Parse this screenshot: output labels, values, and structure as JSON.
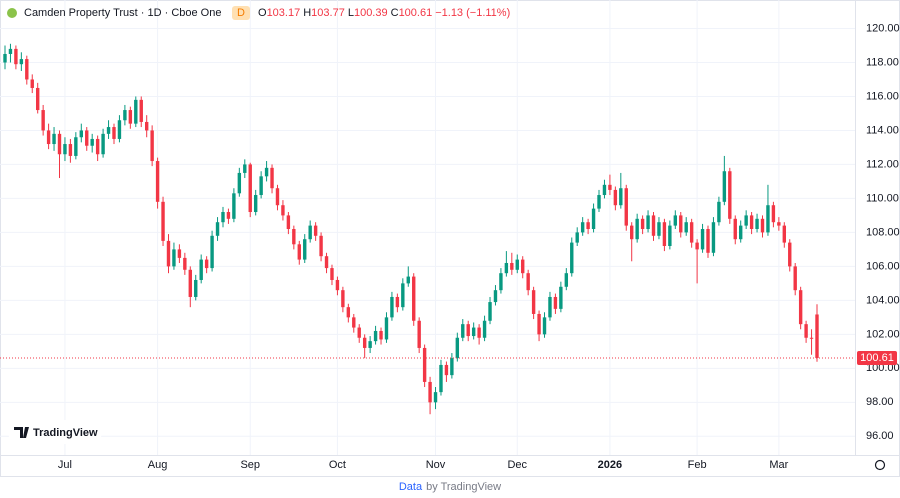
{
  "chart_data": {
    "type": "candlestick",
    "title": "Camden Property Trust · 1D · Cboe One",
    "badge": "D",
    "ohlc_labels": [
      "O",
      "H",
      "L",
      "C"
    ],
    "change_label": "−1.13 (−1.11%)",
    "logo": "TradingView",
    "footer": [
      "Data",
      "by TradingView"
    ],
    "up_color": "#089981",
    "down_color": "#f23645",
    "ylim": [
      94.9,
      120.5
    ],
    "yticks": [
      {
        "value": 96,
        "label": "96.00"
      },
      {
        "value": 98,
        "label": "98.00"
      },
      {
        "value": 100,
        "label": "100.00"
      },
      {
        "value": 102,
        "label": "102.00"
      },
      {
        "value": 104,
        "label": "104.00"
      },
      {
        "value": 106,
        "label": "106.00"
      },
      {
        "value": 108,
        "label": "108.00"
      },
      {
        "value": 110,
        "label": "110.00"
      },
      {
        "value": 112,
        "label": "112.00"
      },
      {
        "value": 114,
        "label": "114.00"
      },
      {
        "value": 116,
        "label": "116.00"
      },
      {
        "value": 118,
        "label": "118.00"
      },
      {
        "value": 120,
        "label": "120.00"
      }
    ],
    "xticks": [
      {
        "value": 11,
        "label": "Jul"
      },
      {
        "value": 28,
        "label": "Aug"
      },
      {
        "value": 45,
        "label": "Sep"
      },
      {
        "value": 61,
        "label": "Oct"
      },
      {
        "value": 79,
        "label": "Nov"
      },
      {
        "value": 94,
        "label": "Dec"
      },
      {
        "value": 111,
        "label": "2026"
      },
      {
        "value": 127,
        "label": "Feb"
      },
      {
        "value": 142,
        "label": "Mar"
      }
    ],
    "grid": true,
    "candles": [
      [
        118.0,
        119.0,
        117.6,
        118.5
      ],
      [
        118.5,
        119.1,
        118.0,
        118.8
      ],
      [
        118.8,
        119.0,
        117.6,
        117.9
      ],
      [
        117.9,
        118.6,
        117.5,
        118.2
      ],
      [
        118.2,
        118.4,
        116.7,
        117.0
      ],
      [
        117.0,
        117.3,
        116.2,
        116.5
      ],
      [
        116.5,
        116.8,
        115.0,
        115.2
      ],
      [
        115.2,
        115.5,
        113.7,
        114.0
      ],
      [
        114.0,
        114.4,
        112.9,
        113.2
      ],
      [
        113.2,
        114.2,
        112.8,
        113.8
      ],
      [
        113.8,
        114.0,
        111.2,
        112.6
      ],
      [
        112.6,
        113.6,
        112.2,
        113.2
      ],
      [
        113.2,
        113.5,
        112.1,
        112.5
      ],
      [
        112.5,
        113.9,
        112.3,
        113.6
      ],
      [
        113.6,
        114.4,
        113.3,
        114.0
      ],
      [
        114.0,
        114.2,
        112.8,
        113.1
      ],
      [
        113.1,
        113.8,
        112.7,
        113.5
      ],
      [
        113.5,
        113.7,
        112.2,
        112.6
      ],
      [
        112.6,
        114.1,
        112.4,
        113.8
      ],
      [
        113.8,
        114.6,
        113.5,
        114.2
      ],
      [
        114.2,
        114.4,
        113.2,
        113.5
      ],
      [
        113.5,
        114.9,
        113.3,
        114.6
      ],
      [
        114.6,
        115.5,
        114.3,
        115.2
      ],
      [
        115.2,
        115.4,
        114.1,
        114.4
      ],
      [
        114.4,
        116.0,
        114.2,
        115.8
      ],
      [
        115.8,
        116.0,
        114.2,
        114.5
      ],
      [
        114.5,
        114.9,
        113.6,
        114.0
      ],
      [
        114.0,
        114.3,
        111.9,
        112.2
      ],
      [
        112.2,
        112.4,
        109.4,
        109.8
      ],
      [
        109.8,
        110.1,
        107.2,
        107.5
      ],
      [
        107.5,
        107.9,
        105.6,
        106.0
      ],
      [
        106.0,
        107.4,
        105.8,
        107.0
      ],
      [
        107.0,
        107.3,
        106.2,
        106.5
      ],
      [
        106.5,
        106.8,
        105.5,
        105.8
      ],
      [
        105.8,
        106.0,
        103.6,
        104.2
      ],
      [
        104.2,
        105.5,
        104.0,
        105.2
      ],
      [
        105.2,
        106.7,
        105.0,
        106.4
      ],
      [
        106.4,
        106.6,
        105.6,
        105.9
      ],
      [
        105.9,
        108.1,
        105.7,
        107.8
      ],
      [
        107.8,
        108.9,
        107.5,
        108.6
      ],
      [
        108.6,
        109.5,
        108.3,
        109.2
      ],
      [
        109.2,
        109.4,
        108.5,
        108.8
      ],
      [
        108.8,
        110.6,
        108.6,
        110.3
      ],
      [
        110.3,
        111.8,
        110.1,
        111.5
      ],
      [
        111.5,
        112.3,
        111.2,
        112.0
      ],
      [
        112.0,
        112.1,
        108.9,
        109.2
      ],
      [
        109.2,
        110.5,
        109.0,
        110.2
      ],
      [
        110.2,
        111.6,
        110.0,
        111.3
      ],
      [
        111.3,
        112.2,
        111.0,
        111.8
      ],
      [
        111.8,
        112.0,
        110.3,
        110.6
      ],
      [
        110.6,
        110.8,
        109.3,
        109.6
      ],
      [
        109.6,
        109.9,
        108.7,
        109.0
      ],
      [
        109.0,
        109.2,
        107.9,
        108.2
      ],
      [
        108.2,
        108.4,
        107.0,
        107.3
      ],
      [
        107.3,
        107.5,
        106.1,
        106.4
      ],
      [
        106.4,
        107.9,
        106.2,
        107.6
      ],
      [
        107.6,
        108.7,
        107.4,
        108.4
      ],
      [
        108.4,
        108.6,
        107.5,
        107.8
      ],
      [
        107.8,
        108.0,
        106.3,
        106.6
      ],
      [
        106.6,
        106.8,
        105.6,
        105.9
      ],
      [
        105.9,
        106.1,
        104.9,
        105.2
      ],
      [
        105.2,
        105.4,
        104.3,
        104.6
      ],
      [
        104.6,
        104.8,
        103.3,
        103.6
      ],
      [
        103.6,
        103.8,
        102.7,
        103.0
      ],
      [
        103.0,
        103.2,
        102.1,
        102.4
      ],
      [
        102.4,
        102.6,
        101.5,
        101.8
      ],
      [
        101.8,
        102.0,
        100.6,
        101.2
      ],
      [
        101.2,
        101.9,
        100.9,
        101.6
      ],
      [
        101.6,
        102.5,
        101.4,
        102.2
      ],
      [
        102.2,
        102.4,
        101.4,
        101.7
      ],
      [
        101.7,
        103.3,
        101.5,
        103.0
      ],
      [
        103.0,
        104.5,
        102.8,
        104.2
      ],
      [
        104.2,
        104.4,
        103.3,
        103.6
      ],
      [
        103.6,
        105.3,
        103.4,
        105.0
      ],
      [
        105.0,
        106.0,
        104.8,
        105.4
      ],
      [
        105.4,
        105.6,
        102.5,
        102.8
      ],
      [
        102.8,
        103.0,
        100.9,
        101.2
      ],
      [
        101.2,
        101.4,
        98.9,
        99.2
      ],
      [
        99.2,
        99.5,
        97.3,
        98.0
      ],
      [
        98.0,
        98.9,
        97.6,
        98.6
      ],
      [
        98.6,
        100.5,
        98.4,
        100.2
      ],
      [
        100.2,
        100.4,
        99.2,
        99.6
      ],
      [
        99.6,
        100.9,
        99.4,
        100.6
      ],
      [
        100.6,
        102.1,
        100.4,
        101.8
      ],
      [
        101.8,
        102.9,
        101.6,
        102.6
      ],
      [
        102.6,
        102.8,
        101.6,
        101.9
      ],
      [
        101.9,
        102.7,
        101.7,
        102.4
      ],
      [
        102.4,
        102.6,
        101.4,
        101.8
      ],
      [
        101.8,
        103.1,
        101.6,
        102.8
      ],
      [
        102.8,
        104.2,
        102.6,
        103.9
      ],
      [
        103.9,
        104.9,
        103.7,
        104.6
      ],
      [
        104.6,
        105.9,
        104.4,
        105.6
      ],
      [
        105.6,
        106.9,
        105.4,
        106.2
      ],
      [
        106.2,
        106.8,
        105.5,
        105.8
      ],
      [
        105.8,
        106.7,
        105.6,
        106.4
      ],
      [
        106.4,
        106.6,
        105.3,
        105.6
      ],
      [
        105.6,
        105.8,
        104.3,
        104.6
      ],
      [
        104.6,
        104.8,
        102.9,
        103.2
      ],
      [
        103.2,
        103.4,
        101.6,
        102.0
      ],
      [
        102.0,
        103.3,
        101.8,
        103.0
      ],
      [
        103.0,
        104.5,
        102.8,
        104.2
      ],
      [
        104.2,
        104.4,
        103.2,
        103.5
      ],
      [
        103.5,
        105.1,
        103.3,
        104.8
      ],
      [
        104.8,
        105.9,
        104.6,
        105.6
      ],
      [
        105.6,
        107.7,
        105.4,
        107.4
      ],
      [
        107.4,
        108.3,
        107.2,
        108.0
      ],
      [
        108.0,
        108.9,
        107.8,
        108.6
      ],
      [
        108.6,
        108.8,
        107.9,
        108.2
      ],
      [
        108.2,
        109.7,
        108.0,
        109.4
      ],
      [
        109.4,
        110.5,
        109.2,
        110.2
      ],
      [
        110.2,
        111.1,
        110.0,
        110.8
      ],
      [
        110.8,
        111.4,
        110.2,
        110.5
      ],
      [
        110.5,
        110.7,
        109.3,
        109.6
      ],
      [
        109.6,
        111.5,
        109.4,
        110.6
      ],
      [
        110.6,
        110.8,
        108.1,
        108.4
      ],
      [
        108.4,
        108.6,
        106.3,
        107.6
      ],
      [
        107.6,
        109.1,
        107.4,
        108.8
      ],
      [
        108.8,
        109.0,
        107.9,
        108.2
      ],
      [
        108.2,
        109.3,
        108.0,
        109.0
      ],
      [
        109.0,
        109.2,
        107.5,
        107.8
      ],
      [
        107.8,
        108.9,
        107.6,
        108.6
      ],
      [
        108.6,
        108.8,
        106.9,
        107.2
      ],
      [
        107.2,
        108.7,
        107.0,
        108.4
      ],
      [
        108.4,
        109.3,
        108.2,
        109.0
      ],
      [
        109.0,
        109.2,
        107.7,
        108.0
      ],
      [
        108.0,
        108.9,
        107.8,
        108.6
      ],
      [
        108.6,
        108.8,
        107.1,
        107.4
      ],
      [
        107.4,
        107.6,
        105.0,
        107.0
      ],
      [
        107.0,
        108.5,
        106.8,
        108.2
      ],
      [
        108.2,
        108.4,
        106.5,
        106.8
      ],
      [
        106.8,
        108.9,
        106.6,
        108.6
      ],
      [
        108.6,
        110.1,
        108.4,
        109.8
      ],
      [
        109.8,
        112.5,
        109.6,
        111.6
      ],
      [
        111.6,
        111.8,
        108.5,
        108.8
      ],
      [
        108.8,
        109.0,
        107.3,
        107.6
      ],
      [
        107.6,
        108.7,
        107.4,
        108.4
      ],
      [
        108.4,
        109.3,
        108.2,
        109.0
      ],
      [
        109.0,
        109.2,
        107.9,
        108.2
      ],
      [
        108.2,
        109.1,
        108.0,
        108.8
      ],
      [
        108.8,
        109.0,
        107.7,
        108.0
      ],
      [
        108.0,
        110.8,
        107.8,
        109.6
      ],
      [
        109.6,
        109.8,
        108.3,
        108.6
      ],
      [
        108.6,
        108.9,
        108.1,
        108.4
      ],
      [
        108.4,
        108.6,
        107.1,
        107.4
      ],
      [
        107.4,
        107.6,
        105.7,
        106.0
      ],
      [
        106.0,
        106.2,
        104.3,
        104.6
      ],
      [
        104.6,
        104.8,
        102.3,
        102.6
      ],
      [
        102.6,
        102.8,
        101.5,
        101.8
      ],
      [
        101.8,
        102.3,
        100.8,
        101.74
      ],
      [
        103.17,
        103.77,
        100.39,
        100.61
      ]
    ]
  }
}
